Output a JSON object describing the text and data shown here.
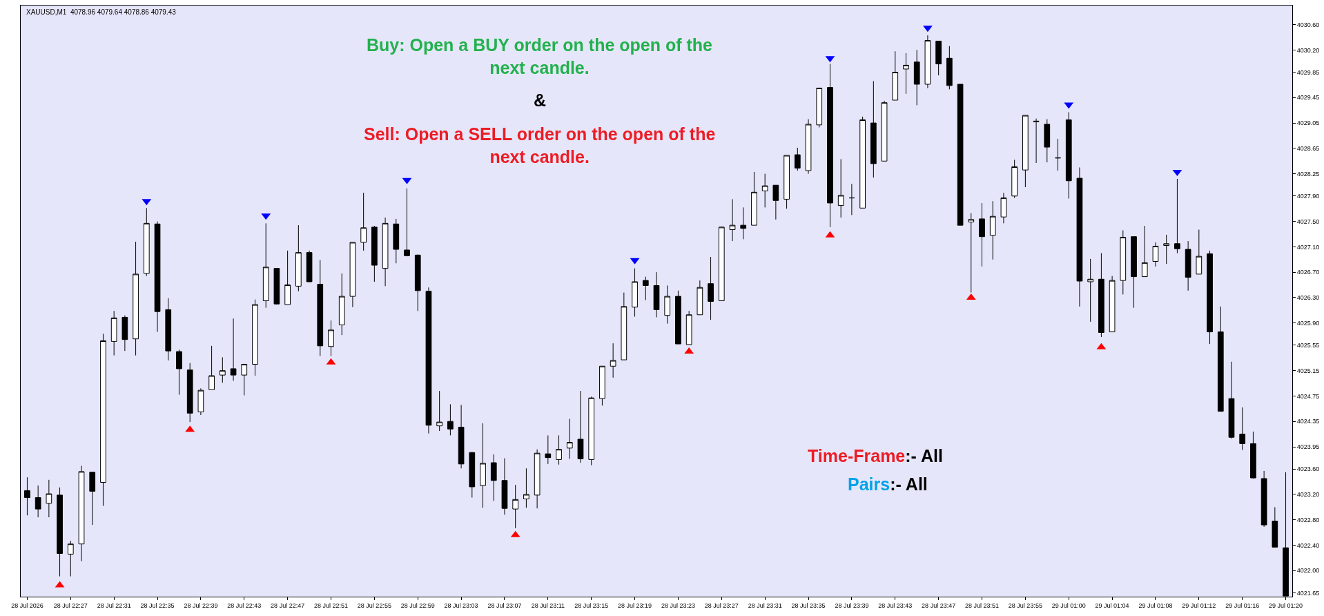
{
  "chart_data": {
    "type": "candlestick",
    "title": "XAUUSD,M1  4078.96 4079.64 4078.86 4079.43",
    "categories": [
      "28 Jul 2026",
      null,
      null,
      null,
      "28 Jul 22:27",
      null,
      null,
      null,
      "28 Jul 22:31",
      null,
      null,
      null,
      "28 Jul 22:35",
      null,
      null,
      null,
      "28 Jul 22:39",
      null,
      null,
      null,
      "28 Jul 22:43",
      null,
      null,
      null,
      "28 Jul 22:47",
      null,
      null,
      null,
      "28 Jul 22:51",
      null,
      null,
      null,
      "28 Jul 22:55",
      null,
      null,
      null,
      "28 Jul 22:59",
      null,
      null,
      null,
      "28 Jul 23:03",
      null,
      null,
      null,
      "28 Jul 23:07",
      null,
      null,
      null,
      "28 Jul 23:11",
      null,
      null,
      null,
      "28 Jul 23:15",
      null,
      null,
      null,
      "28 Jul 23:19",
      null,
      null,
      null,
      "28 Jul 23:23",
      null,
      null,
      null,
      "28 Jul 23:27",
      null,
      null,
      null,
      "28 Jul 23:31",
      null,
      null,
      null,
      "28 Jul 23:35",
      null,
      null,
      null,
      "28 Jul 23:39",
      null,
      null,
      null,
      "28 Jul 23:43",
      null,
      null,
      null,
      "28 Jul 23:47",
      null,
      null,
      null,
      "28 Jul 23:51",
      null,
      null,
      null,
      "28 Jul 23:55",
      null,
      null,
      null,
      "29 Jul 01:00",
      null,
      null,
      null,
      "29 Jul 01:04",
      null,
      null,
      null,
      "29 Jul 01:08",
      null,
      null,
      null,
      "29 Jul 01:12",
      null,
      null,
      null,
      "29 Jul 01:16",
      null,
      null,
      null,
      "29 Jul 01:20"
    ],
    "ohlc": [
      [
        4023.26,
        4023.47,
        4022.87,
        4023.15
      ],
      [
        4023.15,
        4023.34,
        4022.84,
        4022.97
      ],
      [
        4023.06,
        4023.43,
        4022.84,
        4023.21
      ],
      [
        4023.19,
        4023.31,
        4021.91,
        4022.27
      ],
      [
        4022.26,
        4022.47,
        4021.91,
        4022.42
      ],
      [
        4022.42,
        4023.65,
        4022.15,
        4023.56
      ],
      [
        4023.55,
        4023.55,
        4022.72,
        4023.25
      ],
      [
        4023.39,
        4025.73,
        4023.02,
        4025.62
      ],
      [
        4025.61,
        4026.09,
        4025.39,
        4025.98
      ],
      [
        4025.99,
        4026.02,
        4025.46,
        4025.64
      ],
      [
        4025.65,
        4027.18,
        4025.39,
        4026.67
      ],
      [
        4026.68,
        4027.71,
        4026.64,
        4027.47
      ],
      [
        4027.46,
        4027.5,
        4025.76,
        4026.08
      ],
      [
        4026.11,
        4026.29,
        4025.31,
        4025.46
      ],
      [
        4025.45,
        4025.48,
        4024.77,
        4025.18
      ],
      [
        4025.16,
        4025.27,
        4024.34,
        4024.48
      ],
      [
        4024.5,
        4024.87,
        4024.45,
        4024.84
      ],
      [
        4024.85,
        4025.54,
        4024.85,
        4025.07
      ],
      [
        4025.08,
        4025.36,
        4024.96,
        4025.15
      ],
      [
        4025.18,
        4025.97,
        4024.99,
        4025.08
      ],
      [
        4025.08,
        4025.25,
        4024.76,
        4025.25
      ],
      [
        4025.25,
        4026.27,
        4025.07,
        4026.19
      ],
      [
        4026.25,
        4027.47,
        4026.14,
        4026.78
      ],
      [
        4026.76,
        4026.76,
        4026.19,
        4026.2
      ],
      [
        4026.19,
        4027.04,
        4026.19,
        4026.5
      ],
      [
        4026.48,
        4027.44,
        4026.4,
        4027.01
      ],
      [
        4027.01,
        4027.04,
        4026.54,
        4026.55
      ],
      [
        4026.51,
        4026.89,
        4025.38,
        4025.54
      ],
      [
        4025.53,
        4025.94,
        4025.38,
        4025.79
      ],
      [
        4025.87,
        4026.68,
        4025.71,
        4026.32
      ],
      [
        4026.32,
        4027.17,
        4026.15,
        4027.17
      ],
      [
        4027.17,
        4027.95,
        4027.04,
        4027.4
      ],
      [
        4027.41,
        4027.43,
        4026.55,
        4026.81
      ],
      [
        4026.76,
        4027.56,
        4026.48,
        4027.47
      ],
      [
        4027.46,
        4027.54,
        4026.84,
        4027.06
      ],
      [
        4027.05,
        4028.02,
        4026.95,
        4026.96
      ],
      [
        4026.97,
        4026.98,
        4026.09,
        4026.41
      ],
      [
        4026.4,
        4026.46,
        4024.16,
        4024.29
      ],
      [
        4024.28,
        4024.83,
        4024.2,
        4024.34
      ],
      [
        4024.35,
        4024.62,
        4024.13,
        4024.23
      ],
      [
        4024.26,
        4024.61,
        4023.61,
        4023.68
      ],
      [
        4023.86,
        4023.87,
        4023.15,
        4023.32
      ],
      [
        4023.34,
        4024.32,
        4022.99,
        4023.69
      ],
      [
        4023.7,
        4023.83,
        4023.1,
        4023.42
      ],
      [
        4023.42,
        4023.77,
        4022.88,
        4022.98
      ],
      [
        4022.97,
        4023.35,
        4022.67,
        4023.12
      ],
      [
        4023.13,
        4023.61,
        4022.99,
        4023.2
      ],
      [
        4023.19,
        4023.91,
        4022.98,
        4023.85
      ],
      [
        4023.84,
        4024.13,
        4023.68,
        4023.78
      ],
      [
        4023.75,
        4024.13,
        4023.67,
        4023.91
      ],
      [
        4023.93,
        4024.39,
        4023.76,
        4024.02
      ],
      [
        4024.07,
        4024.83,
        4023.7,
        4023.76
      ],
      [
        4023.75,
        4024.74,
        4023.66,
        4024.72
      ],
      [
        4024.71,
        4025.22,
        4024.6,
        4025.22
      ],
      [
        4025.22,
        4025.58,
        4025.04,
        4025.31
      ],
      [
        4025.32,
        4026.38,
        4025.32,
        4026.16
      ],
      [
        4026.15,
        4026.76,
        4026.0,
        4026.55
      ],
      [
        4026.57,
        4026.63,
        4026.26,
        4026.49
      ],
      [
        4026.49,
        4026.7,
        4025.99,
        4026.11
      ],
      [
        4026.02,
        4026.49,
        4025.89,
        4026.32
      ],
      [
        4026.32,
        4026.41,
        4025.57,
        4025.57
      ],
      [
        4025.56,
        4026.09,
        4025.56,
        4026.03
      ],
      [
        4026.03,
        4026.57,
        4026.03,
        4026.46
      ],
      [
        4026.52,
        4026.94,
        4025.95,
        4026.24
      ],
      [
        4026.25,
        4027.42,
        4026.25,
        4027.41
      ],
      [
        4027.37,
        4027.85,
        4027.19,
        4027.44
      ],
      [
        4027.44,
        4027.72,
        4027.22,
        4027.39
      ],
      [
        4027.44,
        4028.28,
        4027.44,
        4027.96
      ],
      [
        4027.98,
        4028.25,
        4027.72,
        4028.06
      ],
      [
        4028.07,
        4028.07,
        4027.53,
        4027.83
      ],
      [
        4027.85,
        4028.54,
        4027.7,
        4028.54
      ],
      [
        4028.55,
        4028.66,
        4028.3,
        4028.34
      ],
      [
        4028.3,
        4029.11,
        4028.25,
        4029.03
      ],
      [
        4029.02,
        4029.6,
        4028.98,
        4029.6
      ],
      [
        4029.61,
        4029.98,
        4027.41,
        4027.79
      ],
      [
        4027.75,
        4028.48,
        4027.56,
        4027.91
      ],
      [
        4027.87,
        4028.09,
        4027.6,
        4027.87
      ],
      [
        4027.71,
        4029.15,
        4027.71,
        4029.1
      ],
      [
        4029.05,
        4029.71,
        4028.19,
        4028.41
      ],
      [
        4028.45,
        4029.4,
        4028.45,
        4029.37
      ],
      [
        4029.41,
        4030.18,
        4029.41,
        4029.85
      ],
      [
        4029.9,
        4030.15,
        4029.51,
        4029.96
      ],
      [
        4030.01,
        4030.2,
        4029.33,
        4029.66
      ],
      [
        4029.66,
        4030.43,
        4029.6,
        4030.35
      ],
      [
        4030.34,
        4030.34,
        4029.8,
        4029.98
      ],
      [
        4030.07,
        4030.26,
        4029.58,
        4029.64
      ],
      [
        4029.66,
        4029.66,
        4027.44,
        4027.44
      ],
      [
        4027.49,
        4027.63,
        4026.38,
        4027.53
      ],
      [
        4027.54,
        4027.79,
        4026.79,
        4027.26
      ],
      [
        4027.28,
        4027.82,
        4026.9,
        4027.58
      ],
      [
        4027.57,
        4027.95,
        4027.47,
        4027.87
      ],
      [
        4027.9,
        4028.47,
        4027.87,
        4028.36
      ],
      [
        4028.31,
        4029.17,
        4028.04,
        4029.17
      ],
      [
        4029.08,
        4029.12,
        4028.42,
        4029.07
      ],
      [
        4029.03,
        4029.11,
        4028.43,
        4028.67
      ],
      [
        4028.5,
        4028.8,
        4028.3,
        4028.5
      ],
      [
        4029.1,
        4029.22,
        4027.86,
        4028.14
      ],
      [
        4028.18,
        4028.35,
        4026.16,
        4026.56
      ],
      [
        4026.55,
        4026.91,
        4025.92,
        4026.59
      ],
      [
        4026.59,
        4027.0,
        4025.68,
        4025.75
      ],
      [
        4025.76,
        4026.64,
        4025.76,
        4026.57
      ],
      [
        4026.57,
        4027.36,
        4026.35,
        4027.25
      ],
      [
        4027.26,
        4027.26,
        4026.14,
        4026.63
      ],
      [
        4026.63,
        4027.43,
        4026.63,
        4026.85
      ],
      [
        4026.87,
        4027.17,
        4026.79,
        4027.11
      ],
      [
        4027.12,
        4027.29,
        4026.83,
        4027.15
      ],
      [
        4027.15,
        4028.17,
        4027.0,
        4027.07
      ],
      [
        4027.06,
        4027.19,
        4026.41,
        4026.62
      ],
      [
        4026.67,
        4027.37,
        4026.67,
        4026.95
      ],
      [
        4026.99,
        4027.04,
        4025.57,
        4025.76
      ],
      [
        4025.76,
        4026.16,
        4024.51,
        4024.51
      ],
      [
        4024.71,
        4025.29,
        4024.08,
        4024.1
      ],
      [
        4024.15,
        4024.57,
        4023.9,
        4024.0
      ],
      [
        4024.0,
        4024.19,
        4023.45,
        4023.46
      ],
      [
        4023.45,
        4023.57,
        4022.69,
        4022.72
      ],
      [
        4022.78,
        4023.0,
        4022.37,
        4022.37
      ],
      [
        4022.36,
        4023.55,
        4021.6,
        4021.6
      ]
    ],
    "series": [
      {
        "type": "scatter",
        "color": "#0000ff",
        "marker": "triangle",
        "values": [
          null,
          null,
          null,
          null,
          null,
          null,
          null,
          null,
          null,
          null,
          null,
          4027.82,
          null,
          null,
          null,
          null,
          null,
          null,
          null,
          null,
          null,
          null,
          4027.59,
          null,
          null,
          null,
          null,
          null,
          null,
          null,
          null,
          null,
          null,
          null,
          null,
          4028.15,
          null,
          null,
          null,
          null,
          null,
          null,
          null,
          null,
          null,
          null,
          null,
          null,
          null,
          null,
          null,
          null,
          null,
          null,
          null,
          null,
          4026.89,
          null,
          null,
          null,
          null,
          null,
          null,
          null,
          null,
          null,
          null,
          null,
          null,
          null,
          null,
          null,
          null,
          null,
          4030.07,
          null,
          null,
          null,
          null,
          null,
          null,
          null,
          null,
          4030.55,
          null,
          null,
          null,
          null,
          null,
          null,
          null,
          null,
          null,
          null,
          null,
          null,
          4029.34,
          null,
          null,
          null,
          null,
          null,
          null,
          null,
          null,
          null,
          4028.28,
          null,
          null,
          null,
          null,
          null,
          null,
          null,
          null,
          null,
          null
        ]
      },
      {
        "type": "scatter",
        "color": "#ff0000",
        "marker": "triangle",
        "values": [
          null,
          null,
          null,
          4021.77,
          null,
          null,
          null,
          null,
          null,
          null,
          null,
          null,
          null,
          null,
          null,
          4024.22,
          null,
          null,
          null,
          null,
          null,
          null,
          null,
          null,
          null,
          null,
          null,
          null,
          4025.28,
          null,
          null,
          null,
          null,
          null,
          null,
          null,
          null,
          null,
          null,
          null,
          null,
          null,
          null,
          null,
          null,
          4022.56,
          null,
          null,
          null,
          null,
          null,
          null,
          null,
          null,
          null,
          null,
          null,
          null,
          null,
          null,
          null,
          4025.45,
          null,
          null,
          null,
          null,
          null,
          null,
          null,
          null,
          null,
          null,
          null,
          null,
          4027.28,
          null,
          null,
          null,
          null,
          null,
          null,
          null,
          null,
          null,
          null,
          null,
          null,
          4026.3,
          null,
          null,
          null,
          null,
          null,
          null,
          null,
          null,
          null,
          null,
          null,
          4025.52,
          null,
          null,
          null,
          null,
          null,
          null,
          null,
          null,
          null,
          null,
          null,
          null,
          null,
          null,
          null,
          null,
          null
        ]
      }
    ],
    "ylim": [
      4021.59,
      4030.9
    ],
    "yticks": [
      {
        "value": 4030.6,
        "label": "4030.60"
      },
      {
        "value": 4030.2,
        "label": "4030.20"
      },
      4029.85,
      4029.45,
      4029.05,
      4028.65,
      4028.25,
      {
        "value": 4027.9,
        "label": "4027.90"
      },
      {
        "value": 4027.5,
        "label": "4027.50"
      },
      {
        "value": 4027.1,
        "label": "4027.10"
      },
      {
        "value": 4026.7,
        "label": "4026.70"
      },
      {
        "value": 4026.3,
        "label": "4026.30"
      },
      {
        "value": 4025.9,
        "label": "4025.90"
      },
      4025.55,
      4025.15,
      4024.75,
      4024.35,
      4023.95,
      {
        "value": 4023.6,
        "label": "4023.60"
      },
      {
        "value": 4023.2,
        "label": "4023.20"
      },
      {
        "value": 4022.8,
        "label": "4022.80"
      },
      {
        "value": 4022.4,
        "label": "4022.40"
      },
      {
        "value": 4022.0,
        "label": "4022.00"
      },
      4021.65
    ],
    "annotations": [
      "Buy: Open a BUY order on the open of the\nnext candle.",
      "&",
      "Sell: Open a SELL order on the open of the\nnext candle.",
      "Time-Frame:- All",
      "Pairs:- All"
    ],
    "grid": false
  }
}
